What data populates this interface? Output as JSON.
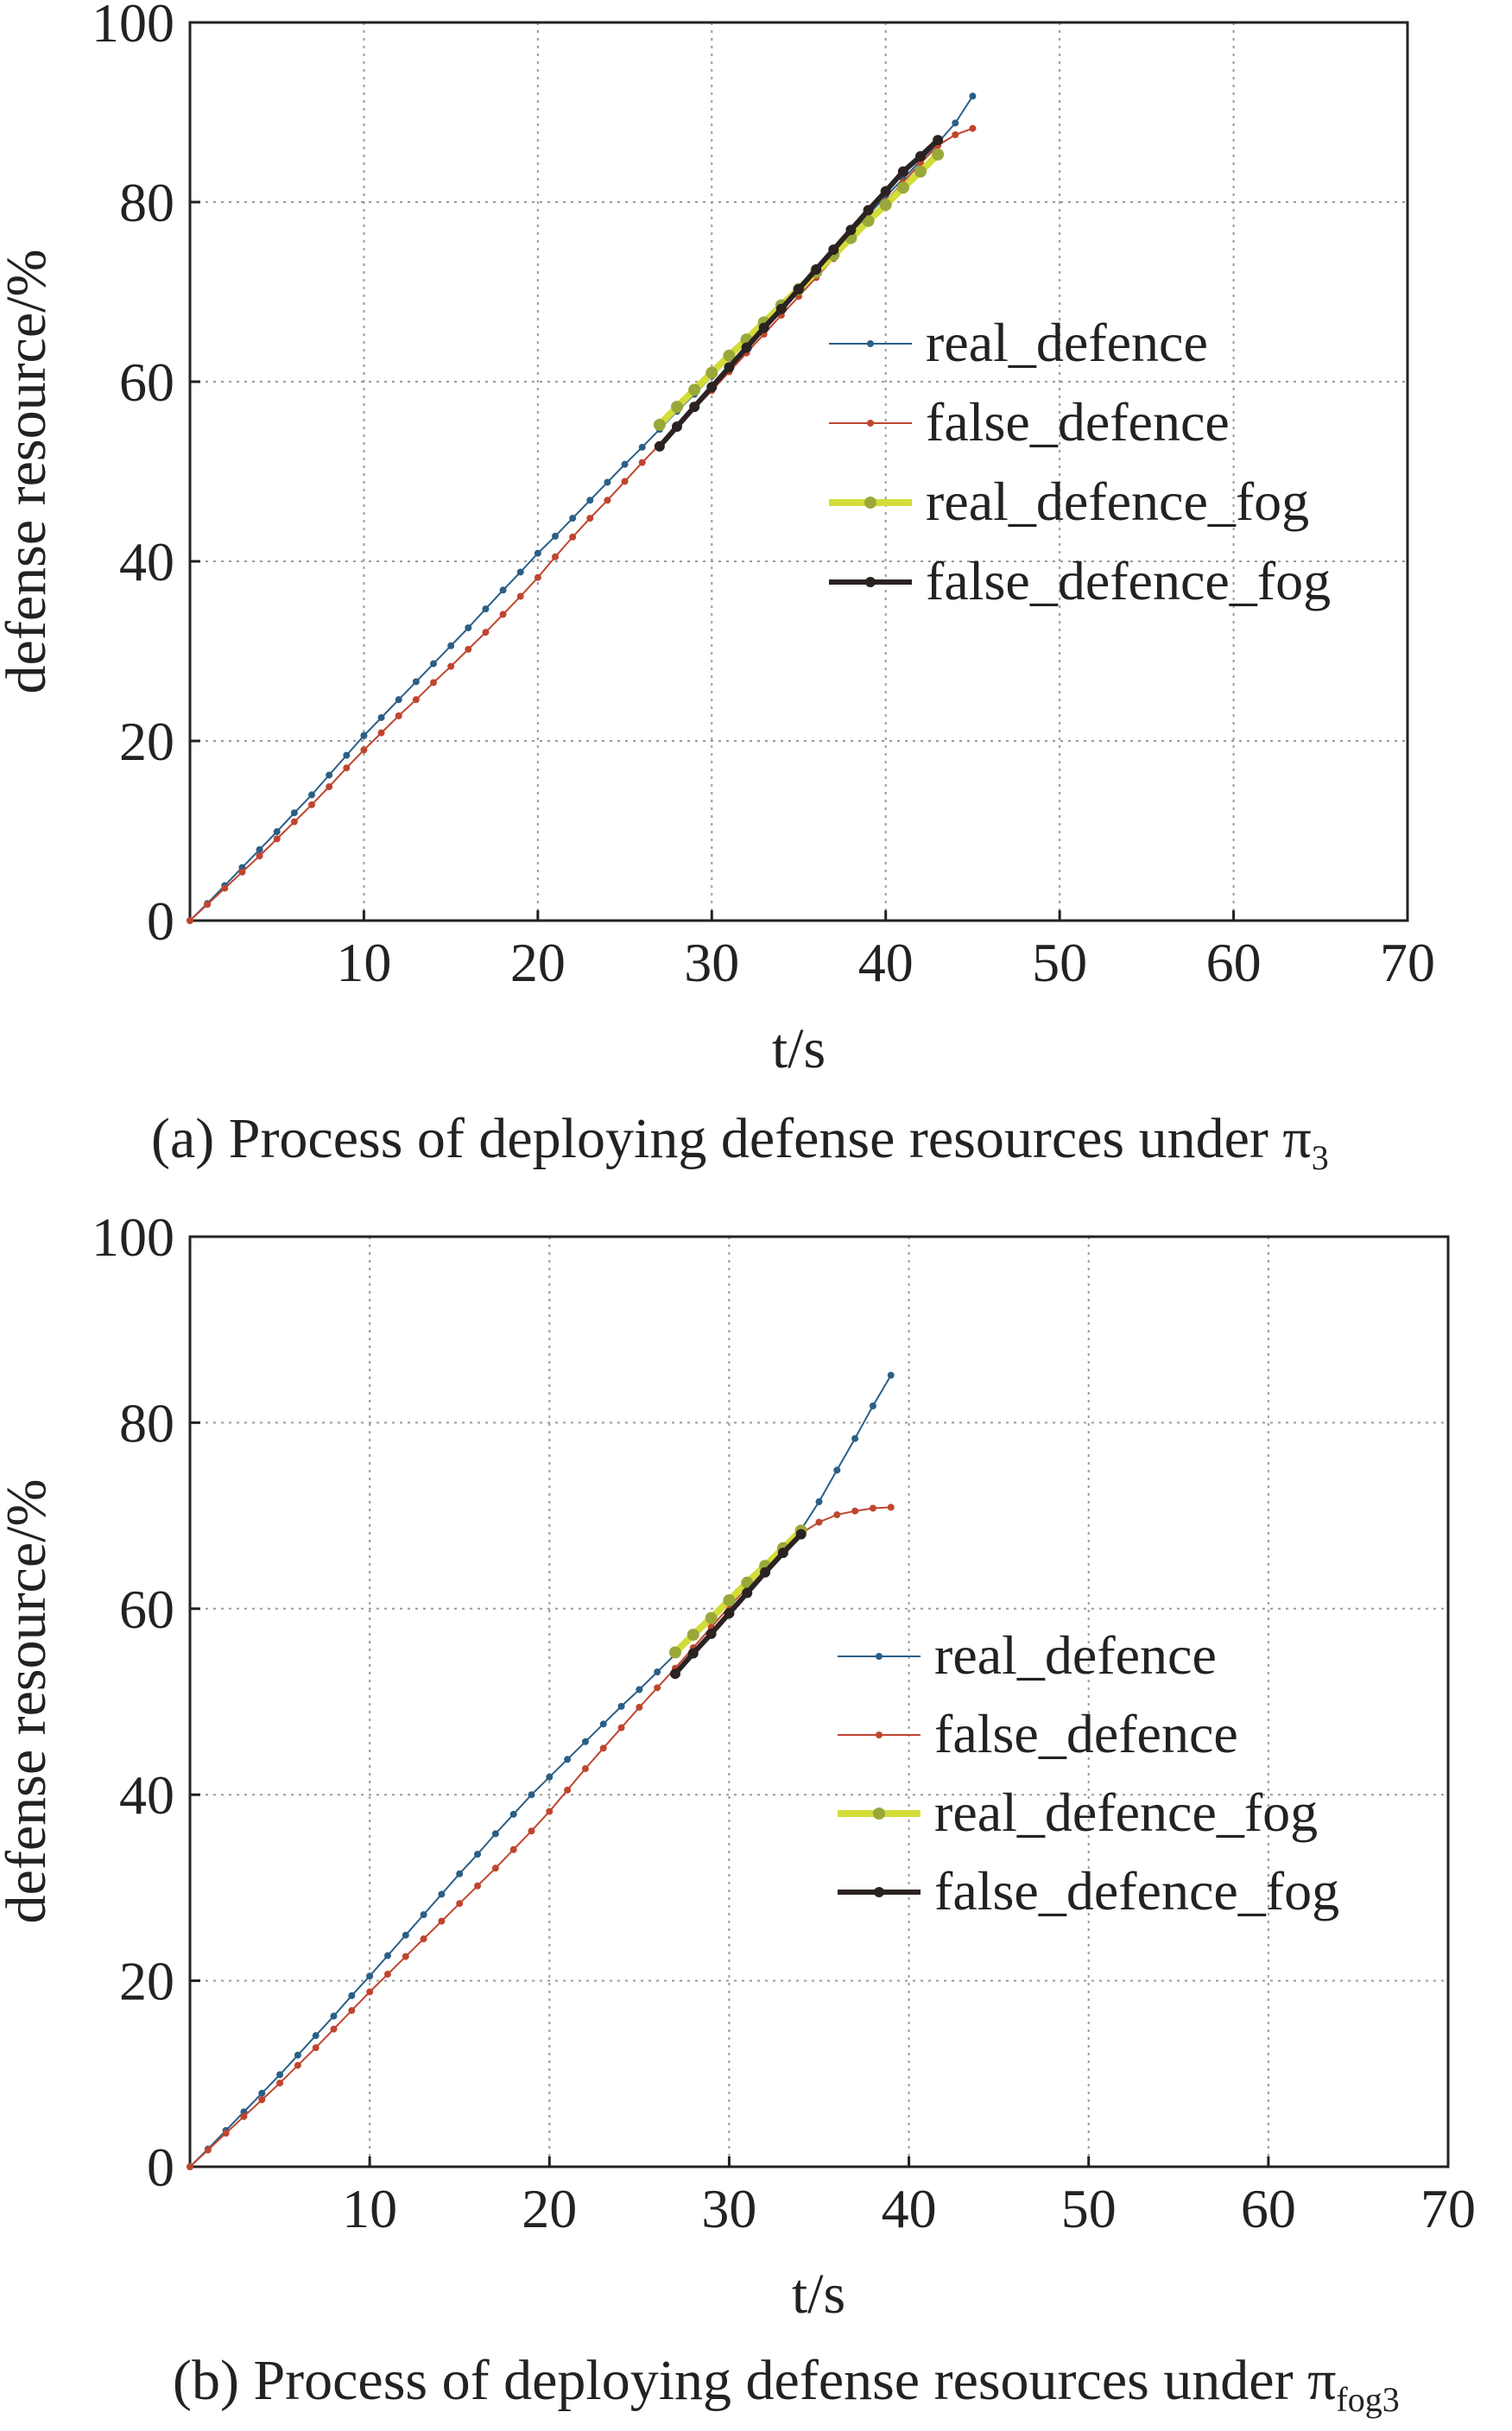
{
  "chart_data": [
    {
      "type": "line",
      "panel": "a",
      "xlabel": "t/s",
      "ylabel": "defense resource/%",
      "caption": "(a) Process of deploying defense resources under π3",
      "caption_main": "(a) Process of deploying defense resources under π",
      "caption_sub": "3",
      "xlim": [
        0,
        70
      ],
      "ylim": [
        0,
        100
      ],
      "xticks": [
        10,
        20,
        30,
        40,
        50,
        60,
        70
      ],
      "yticks": [
        0,
        20,
        40,
        60,
        80,
        100
      ],
      "grid": true,
      "legend_position": "center-right",
      "series": [
        {
          "name": "real_defence",
          "color": "#2b5f86",
          "width": 2,
          "marker": 4,
          "x": [
            0,
            1,
            2,
            3,
            4,
            5,
            6,
            7,
            8,
            9,
            10,
            11,
            12,
            13,
            14,
            15,
            16,
            17,
            18,
            19,
            20,
            21,
            22,
            23,
            24,
            25,
            26,
            27,
            28,
            29,
            30,
            31,
            32,
            33,
            34,
            35,
            36,
            37,
            38,
            39,
            40,
            41,
            42,
            43,
            44,
            45
          ],
          "y": [
            0,
            1.9,
            3.9,
            5.9,
            7.9,
            9.9,
            12,
            14,
            16.2,
            18.4,
            20.6,
            22.6,
            24.6,
            26.6,
            28.6,
            30.6,
            32.6,
            34.7,
            36.8,
            38.8,
            40.9,
            42.8,
            44.8,
            46.8,
            48.8,
            50.8,
            52.7,
            54.7,
            56.7,
            58.6,
            60.6,
            62.6,
            64.6,
            66.6,
            68.6,
            70.6,
            72.6,
            74.6,
            76.6,
            78.6,
            80.6,
            82.6,
            84.6,
            86.6,
            88.8,
            91.8
          ]
        },
        {
          "name": "false_defence",
          "color": "#c0452f",
          "width": 2,
          "marker": 4,
          "x": [
            0,
            1,
            2,
            3,
            4,
            5,
            6,
            7,
            8,
            9,
            10,
            11,
            12,
            13,
            14,
            15,
            16,
            17,
            18,
            19,
            20,
            21,
            22,
            23,
            24,
            25,
            26,
            27,
            28,
            29,
            30,
            31,
            32,
            33,
            34,
            35,
            36,
            37,
            38,
            39,
            40,
            41,
            42,
            43,
            44,
            45
          ],
          "y": [
            0,
            1.8,
            3.6,
            5.4,
            7.2,
            9.1,
            11,
            12.9,
            14.9,
            17,
            19,
            20.9,
            22.8,
            24.6,
            26.5,
            28.3,
            30.2,
            32.1,
            34.1,
            36.1,
            38.2,
            40.5,
            42.7,
            44.8,
            46.8,
            48.9,
            51,
            53,
            55,
            57,
            59,
            61.1,
            63.2,
            65.3,
            67.4,
            69.5,
            71.6,
            73.7,
            75.9,
            78,
            80.1,
            82.2,
            84.3,
            86.3,
            87.5,
            88.2
          ]
        },
        {
          "name": "real_defence_fog",
          "color": "#d4dc3a",
          "width": 8,
          "marker": 7,
          "markerColor": "#9aa83a",
          "x": [
            27,
            28,
            29,
            30,
            31,
            32,
            33,
            34,
            35,
            36,
            37,
            38,
            39,
            40,
            41,
            42,
            43
          ],
          "y": [
            55.2,
            57.2,
            59.1,
            61,
            62.9,
            64.7,
            66.6,
            68.5,
            70.3,
            72.2,
            74.1,
            76,
            77.9,
            79.7,
            81.6,
            83.4,
            85.3
          ]
        },
        {
          "name": "false_defence_fog",
          "color": "#2b2222",
          "width": 6,
          "marker": 6,
          "x": [
            27,
            28,
            29,
            30,
            31,
            32,
            33,
            34,
            35,
            36,
            37,
            38,
            39,
            40,
            41,
            42,
            43
          ],
          "y": [
            52.8,
            55,
            57.2,
            59.4,
            61.6,
            63.8,
            66,
            68.1,
            70.3,
            72.5,
            74.7,
            76.9,
            79.1,
            81.2,
            83.4,
            85.1,
            86.9
          ]
        }
      ]
    },
    {
      "type": "line",
      "panel": "b",
      "xlabel": "t/s",
      "ylabel": "defense resource/%",
      "caption": "(b) Process of deploying defense resources under πfog3",
      "caption_main": "(b) Process of deploying defense resources under π",
      "caption_sub": "fog3",
      "xlim": [
        0,
        70
      ],
      "ylim": [
        0,
        100
      ],
      "xticks": [
        10,
        20,
        30,
        40,
        50,
        60,
        70
      ],
      "yticks": [
        0,
        20,
        40,
        60,
        80,
        100
      ],
      "grid": true,
      "legend_position": "center-right",
      "series": [
        {
          "name": "real_defence",
          "color": "#2b5f86",
          "width": 2,
          "marker": 4,
          "x": [
            0,
            1,
            2,
            3,
            4,
            5,
            6,
            7,
            8,
            9,
            10,
            11,
            12,
            13,
            14,
            15,
            16,
            17,
            18,
            19,
            20,
            21,
            22,
            23,
            24,
            25,
            26,
            27,
            28,
            29,
            30,
            31,
            32,
            33,
            34,
            35,
            36,
            37,
            38,
            39
          ],
          "y": [
            0,
            1.9,
            3.9,
            5.9,
            7.9,
            9.9,
            12,
            14.1,
            16.2,
            18.4,
            20.5,
            22.7,
            24.9,
            27.1,
            29.3,
            31.5,
            33.6,
            35.8,
            37.9,
            40,
            41.9,
            43.8,
            45.7,
            47.6,
            49.5,
            51.3,
            53.2,
            55.1,
            57,
            58.9,
            60.8,
            62.7,
            64.6,
            66.5,
            68.5,
            71.5,
            74.9,
            78.3,
            81.8,
            85.1
          ]
        },
        {
          "name": "false_defence",
          "color": "#c0452f",
          "width": 2,
          "marker": 4,
          "x": [
            0,
            1,
            2,
            3,
            4,
            5,
            6,
            7,
            8,
            9,
            10,
            11,
            12,
            13,
            14,
            15,
            16,
            17,
            18,
            19,
            20,
            21,
            22,
            23,
            24,
            25,
            26,
            27,
            28,
            29,
            30,
            31,
            32,
            33,
            34,
            35,
            36,
            37,
            38,
            39
          ],
          "y": [
            0,
            1.8,
            3.6,
            5.4,
            7.2,
            9,
            10.9,
            12.8,
            14.8,
            16.8,
            18.8,
            20.7,
            22.6,
            24.5,
            26.4,
            28.3,
            30.2,
            32.1,
            34.1,
            36.1,
            38.2,
            40.5,
            42.8,
            45,
            47.2,
            49.4,
            51.5,
            53.6,
            55.8,
            58,
            60.2,
            62.3,
            64.5,
            66.4,
            68.1,
            69.3,
            70.1,
            70.5,
            70.8,
            70.9
          ]
        },
        {
          "name": "real_defence_fog",
          "color": "#d4dc3a",
          "width": 8,
          "marker": 7,
          "markerColor": "#9aa83a",
          "x": [
            27,
            28,
            29,
            30,
            31,
            32,
            33,
            34
          ],
          "y": [
            55.3,
            57.2,
            59,
            60.9,
            62.8,
            64.6,
            66.5,
            68.4
          ]
        },
        {
          "name": "false_defence_fog",
          "color": "#2b2222",
          "width": 6,
          "marker": 6,
          "x": [
            27,
            28,
            29,
            30,
            31,
            32,
            33,
            34
          ],
          "y": [
            53,
            55.2,
            57.3,
            59.5,
            61.7,
            63.9,
            66,
            68
          ]
        }
      ]
    }
  ]
}
